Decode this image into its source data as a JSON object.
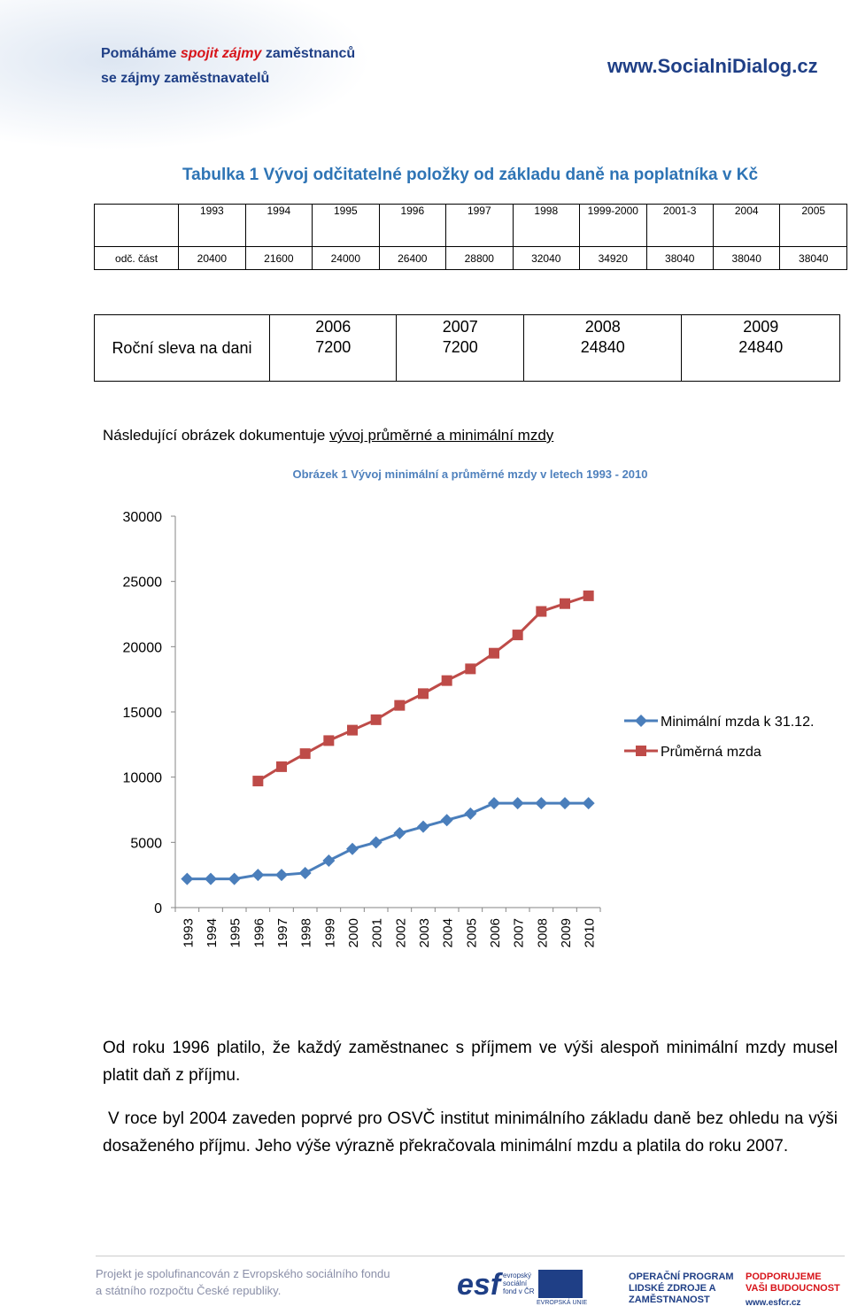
{
  "header": {
    "tagline": [
      "Pomáháme ",
      "spojit zájmy",
      " zaměstnanců"
    ],
    "tagline2": "se zájmy zaměstnavatelů",
    "site": "www.SocialniDialog.cz"
  },
  "table1": {
    "title": "Tabulka 1 Vývoj odčitatelné položky od základu daně na poplatníka v Kč",
    "rows": [
      [
        "",
        "1993",
        "1994",
        "1995",
        "1996",
        "1997",
        "1998",
        "1999-2000",
        "2001-3",
        "2004",
        "2005"
      ],
      [
        "odč. část",
        "20400",
        "21600",
        "24000",
        "26400",
        "28800",
        "32040",
        "34920",
        "38040",
        "38040",
        "38040"
      ]
    ]
  },
  "table2": {
    "label": "Roční sleva na dani",
    "years": [
      "2006",
      "2007",
      "2008",
      "2009"
    ],
    "values": [
      "7200",
      "7200",
      "24840",
      "24840"
    ]
  },
  "intro": [
    "Následující obrázek dokumentuje ",
    "vývoj průměrné a minimální mzdy"
  ],
  "chart_data": {
    "type": "line",
    "title": "Obrázek 1 Vývoj minimální a průměrné mzdy v letech 1993 - 2010",
    "categories": [
      "1993",
      "1994",
      "1995",
      "1996",
      "1997",
      "1998",
      "1999",
      "2000",
      "2001",
      "2002",
      "2003",
      "2004",
      "2005",
      "2006",
      "2007",
      "2008",
      "2009",
      "2010"
    ],
    "series": [
      {
        "name": "Minimální mzda k 31.12.",
        "color": "#4a7ebb",
        "marker": "diamond",
        "values": [
          2200,
          2200,
          2200,
          2500,
          2500,
          2650,
          3600,
          4500,
          5000,
          5700,
          6200,
          6700,
          7200,
          8000,
          8000,
          8000,
          8000,
          8000
        ]
      },
      {
        "name": "Průměrná mzda",
        "color": "#be4b48",
        "marker": "square",
        "values": [
          null,
          null,
          null,
          9700,
          10800,
          11800,
          12800,
          13600,
          14400,
          15500,
          16400,
          17400,
          18300,
          19500,
          20900,
          22700,
          23300,
          23900
        ]
      }
    ],
    "ylim": [
      0,
      30000
    ],
    "yticks": [
      0,
      5000,
      10000,
      15000,
      20000,
      25000,
      30000
    ],
    "grid": false,
    "legend": "right"
  },
  "paragraphs": [
    "Od roku 1996 platilo, že každý zaměstnanec s příjmem ve výši alespoň minimální mzdy musel platit daň  z příjmu.",
    "V  roce byl 2004 zaveden poprvé pro OSVČ institut minimálního základu daně bez ohledu na výši dosaženého příjmu. Jeho výše výrazně překračovala minimální mzdu a platila do roku 2007."
  ],
  "footer": {
    "text": [
      "Projekt je spolufinancován z Evropského sociálního fondu",
      "a státního rozpočtu České republiky."
    ],
    "logos": [
      "esf",
      "evropský sociální fond v ČR",
      "EVROPSKÁ UNIE",
      "OPERAČNÍ PROGRAM LIDSKÉ ZDROJE A ZAMĚSTNANOST",
      "PODPORUJEME VAŠI BUDOUCNOST",
      "www.esfcr.cz"
    ]
  }
}
